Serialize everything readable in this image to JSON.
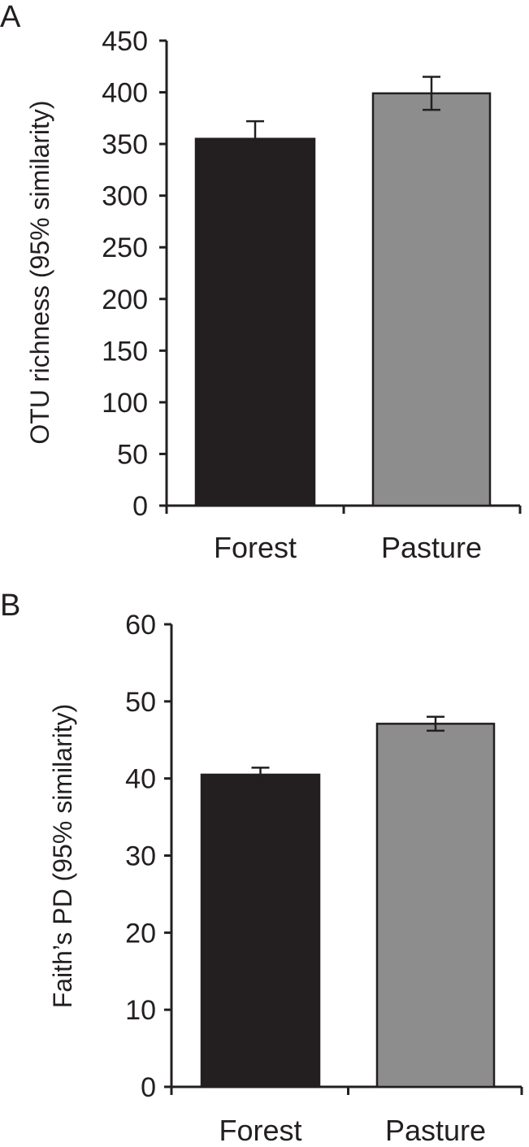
{
  "chart_data": [
    {
      "type": "bar",
      "panel_label": "A",
      "title": "",
      "xlabel": "",
      "ylabel": "OTU richness (95% similarity)",
      "categories": [
        "Forest",
        "Pasture"
      ],
      "values": [
        355,
        399
      ],
      "errors": [
        17,
        16
      ],
      "bar_colors": [
        "#231f20",
        "#8e8d8e"
      ],
      "ylim": [
        0,
        450
      ],
      "yticks": [
        0,
        50,
        100,
        150,
        200,
        250,
        300,
        350,
        400,
        450
      ],
      "grid": false,
      "legend": "none"
    },
    {
      "type": "bar",
      "panel_label": "B",
      "title": "",
      "xlabel": "",
      "ylabel": "Faith’s PD (95% similarity)",
      "categories": [
        "Forest",
        "Pasture"
      ],
      "values": [
        40.5,
        47.1
      ],
      "errors": [
        0.9,
        0.9
      ],
      "bar_colors": [
        "#231f20",
        "#8e8d8e"
      ],
      "ylim": [
        0,
        60
      ],
      "yticks": [
        0,
        10,
        20,
        30,
        40,
        50,
        60
      ],
      "grid": false,
      "legend": "none"
    }
  ]
}
